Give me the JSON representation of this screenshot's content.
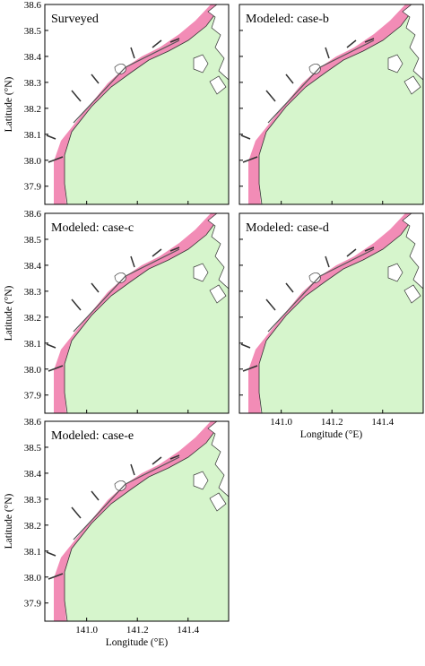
{
  "panels": [
    {
      "title": "Surveyed"
    },
    {
      "title": "Modeled: case-b"
    },
    {
      "title": "Modeled: case-c"
    },
    {
      "title": "Modeled: case-d"
    },
    {
      "title": "Modeled: case-e"
    }
  ],
  "axes": {
    "ylabel": "Latitude (°N)",
    "xlabel": "Longitude (°E)",
    "ylim": [
      37.83,
      38.6
    ],
    "yticks": [
      38.6,
      38.5,
      38.4,
      38.3,
      38.2,
      38.1,
      {
        "value": 38.0,
        "label": "38.0"
      },
      37.9
    ],
    "xlim": [
      140.835,
      141.56
    ],
    "xticks": [
      {
        "value": 141.0,
        "label": "141.0"
      },
      141.2,
      141.4
    ]
  }
}
